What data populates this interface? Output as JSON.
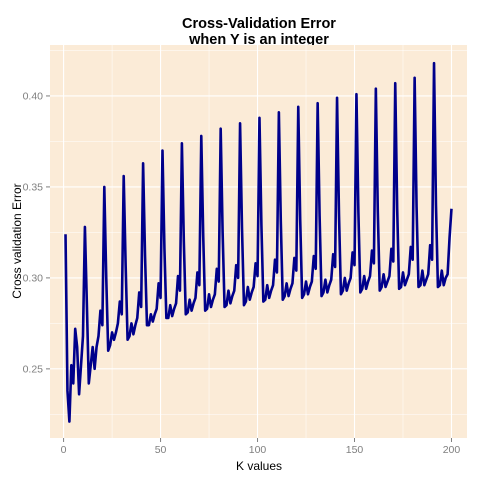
{
  "chart_data": {
    "type": "line",
    "title_lines": [
      "Cross-Validation Error",
      "when Y is an integer"
    ],
    "xlabel": "K values",
    "ylabel": "Cross validation Error",
    "xlim": [
      -7,
      208
    ],
    "ylim": [
      0.212,
      0.428
    ],
    "x_ticks": [
      0,
      50,
      100,
      150,
      200
    ],
    "y_ticks": [
      0.25,
      0.3,
      0.35,
      0.4
    ],
    "x_tick_labels": [
      "0",
      "50",
      "100",
      "150",
      "200"
    ],
    "y_tick_labels": [
      "0.25",
      "0.30",
      "0.35",
      "0.40"
    ],
    "grid": true,
    "colors": {
      "panel": "#fbebd7",
      "grid": "#ffffff",
      "line": "#00008b"
    },
    "series": [
      {
        "x": [
          1,
          2,
          3,
          4,
          5,
          6,
          7,
          8,
          9,
          10,
          11,
          12,
          13,
          14,
          15,
          16,
          17,
          18,
          19,
          20,
          21,
          22,
          23,
          24,
          25,
          26,
          27,
          28,
          29,
          30,
          31,
          32,
          33,
          34,
          35,
          36,
          37,
          38,
          39,
          40,
          41,
          42,
          43,
          44,
          45,
          46,
          47,
          48,
          49,
          50,
          51,
          52,
          53,
          54,
          55,
          56,
          57,
          58,
          59,
          60,
          61,
          62,
          63,
          64,
          65,
          66,
          67,
          68,
          69,
          70,
          71,
          72,
          73,
          74,
          75,
          76,
          77,
          78,
          79,
          80,
          81,
          82,
          83,
          84,
          85,
          86,
          87,
          88,
          89,
          90,
          91,
          92,
          93,
          94,
          95,
          96,
          97,
          98,
          99,
          100,
          101,
          102,
          103,
          104,
          105,
          106,
          107,
          108,
          109,
          110,
          111,
          112,
          113,
          114,
          115,
          116,
          117,
          118,
          119,
          120,
          121,
          122,
          123,
          124,
          125,
          126,
          127,
          128,
          129,
          130,
          131,
          132,
          133,
          134,
          135,
          136,
          137,
          138,
          139,
          140,
          141,
          142,
          143,
          144,
          145,
          146,
          147,
          148,
          149,
          150,
          151,
          152,
          153,
          154,
          155,
          156,
          157,
          158,
          159,
          160,
          161,
          162,
          163,
          164,
          165,
          166,
          167,
          168,
          169,
          170,
          171,
          172,
          173,
          174,
          175,
          176,
          177,
          178,
          179,
          180,
          181,
          182,
          183,
          184,
          185,
          186,
          187,
          188,
          189,
          190,
          191,
          192,
          193,
          194,
          195,
          196,
          197,
          198,
          199,
          200
        ],
        "y": [
          0.324,
          0.238,
          0.221,
          0.252,
          0.242,
          0.272,
          0.262,
          0.236,
          0.252,
          0.268,
          0.328,
          0.286,
          0.242,
          0.252,
          0.262,
          0.25,
          0.262,
          0.268,
          0.282,
          0.274,
          0.35,
          0.3,
          0.26,
          0.263,
          0.27,
          0.266,
          0.27,
          0.275,
          0.287,
          0.28,
          0.356,
          0.307,
          0.266,
          0.268,
          0.275,
          0.269,
          0.274,
          0.278,
          0.292,
          0.284,
          0.363,
          0.312,
          0.274,
          0.274,
          0.28,
          0.276,
          0.28,
          0.283,
          0.297,
          0.289,
          0.37,
          0.316,
          0.278,
          0.278,
          0.285,
          0.279,
          0.283,
          0.286,
          0.301,
          0.293,
          0.374,
          0.32,
          0.28,
          0.281,
          0.288,
          0.282,
          0.286,
          0.289,
          0.303,
          0.296,
          0.378,
          0.323,
          0.282,
          0.283,
          0.291,
          0.284,
          0.288,
          0.291,
          0.305,
          0.298,
          0.382,
          0.325,
          0.284,
          0.285,
          0.293,
          0.286,
          0.29,
          0.293,
          0.307,
          0.3,
          0.385,
          0.327,
          0.285,
          0.287,
          0.295,
          0.288,
          0.292,
          0.295,
          0.308,
          0.301,
          0.388,
          0.329,
          0.287,
          0.288,
          0.296,
          0.289,
          0.293,
          0.296,
          0.31,
          0.303,
          0.391,
          0.331,
          0.288,
          0.29,
          0.297,
          0.29,
          0.294,
          0.297,
          0.311,
          0.304,
          0.394,
          0.332,
          0.289,
          0.291,
          0.298,
          0.291,
          0.295,
          0.298,
          0.312,
          0.305,
          0.396,
          0.334,
          0.29,
          0.292,
          0.299,
          0.292,
          0.296,
          0.299,
          0.313,
          0.306,
          0.399,
          0.335,
          0.291,
          0.293,
          0.3,
          0.293,
          0.297,
          0.3,
          0.314,
          0.307,
          0.401,
          0.336,
          0.292,
          0.294,
          0.301,
          0.294,
          0.298,
          0.301,
          0.315,
          0.308,
          0.404,
          0.337,
          0.293,
          0.295,
          0.302,
          0.295,
          0.298,
          0.301,
          0.316,
          0.309,
          0.407,
          0.338,
          0.294,
          0.295,
          0.303,
          0.296,
          0.299,
          0.302,
          0.317,
          0.31,
          0.41,
          0.339,
          0.295,
          0.296,
          0.304,
          0.296,
          0.299,
          0.302,
          0.318,
          0.31,
          0.418,
          0.34,
          0.295,
          0.296,
          0.304,
          0.296,
          0.3,
          0.302,
          0.322,
          0.338
        ]
      }
    ]
  }
}
